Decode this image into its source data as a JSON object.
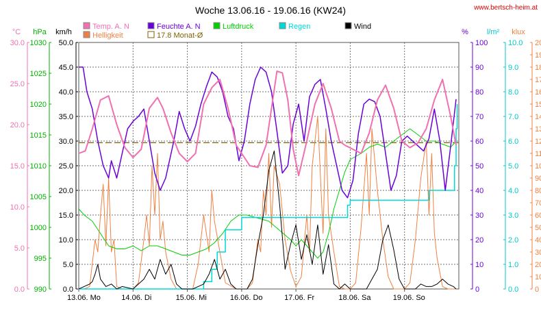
{
  "chart_data": {
    "type": "line",
    "title": "Woche 13.06.16 - 19.06.16 (KW24)",
    "source_text": "www.bertsch-heim.at",
    "x_labels": [
      "13.06.  Mo",
      "14.06.  Di",
      "15.06.  Mi",
      "16.06.  Do",
      "17.06.  Fr",
      "18.06.  Sa",
      "19.06.  So"
    ],
    "x_range": [
      0,
      7
    ],
    "grid": true,
    "legend": [
      {
        "label": "Temp. A. N",
        "color": "#f070b0"
      },
      {
        "label": "Helligkeit",
        "color": "#f08040"
      },
      {
        "label": "Feuchte A. N",
        "color": "#6a00d8"
      },
      {
        "label": "17.8 Monat-Ø",
        "color": "#806000"
      },
      {
        "label": "Luftdruck",
        "color": "#00d000"
      },
      {
        "label": "Regen",
        "color": "#00d8d8"
      },
      {
        "label": "Wind",
        "color": "#000000"
      }
    ],
    "axes": [
      {
        "unit": "°C",
        "color": "#f070b0",
        "min": 0,
        "max": 30,
        "ticks": [
          "0.0",
          "5.0",
          "10.0",
          "15.0",
          "20.0",
          "25.0",
          "30.0"
        ]
      },
      {
        "unit": "hPa",
        "color": "#00b000",
        "min": 990,
        "max": 1030,
        "ticks": [
          "990",
          "995",
          "1000",
          "1005",
          "1010",
          "1015",
          "1020",
          "1025",
          "1030"
        ]
      },
      {
        "unit": "km/h",
        "color": "#000000",
        "min": 0,
        "max": 50,
        "ticks": [
          "0.0",
          "5.0",
          "10.0",
          "15.0",
          "20.0",
          "25.0",
          "30.0",
          "35.0",
          "40.0",
          "45.0",
          "50.0"
        ]
      },
      {
        "unit": "%",
        "color": "#6a00d8",
        "min": 0,
        "max": 100,
        "ticks": [
          "0",
          "10",
          "20",
          "30",
          "40",
          "50",
          "60",
          "70",
          "80",
          "90",
          "100"
        ]
      },
      {
        "unit": "l/m²",
        "color": "#00c8c8",
        "min": 0,
        "max": 10,
        "ticks": [
          "0.0",
          "1.0",
          "2.0",
          "3.0",
          "4.0",
          "5.0",
          "6.0",
          "7.0",
          "8.0",
          "9.0",
          "10.0"
        ]
      },
      {
        "unit": "klux",
        "color": "#f08040",
        "min": 0,
        "max": 200,
        "ticks": [
          "0",
          "10",
          "20",
          "30",
          "40",
          "50",
          "60",
          "70",
          "80",
          "90",
          "100",
          "110",
          "120",
          "130",
          "140",
          "150",
          "160",
          "170",
          "180",
          "190",
          "200"
        ]
      }
    ],
    "series": [
      {
        "name": "Temp. A. N",
        "axis": 0,
        "color": "#f070b0",
        "width": 2,
        "x": [
          0,
          0.12,
          0.25,
          0.4,
          0.55,
          0.7,
          0.85,
          1.0,
          1.15,
          1.3,
          1.45,
          1.55,
          1.7,
          1.85,
          2.0,
          2.15,
          2.3,
          2.45,
          2.6,
          2.75,
          2.9,
          3.0,
          3.15,
          3.3,
          3.45,
          3.55,
          3.65,
          3.75,
          3.85,
          3.95,
          4.05,
          4.2,
          4.35,
          4.5,
          4.65,
          4.8,
          4.9,
          5.05,
          5.2,
          5.35,
          5.5,
          5.65,
          5.8,
          5.95,
          6.1,
          6.25,
          6.4,
          6.55,
          6.7,
          6.85,
          6.95
        ],
        "y": [
          16.5,
          16.8,
          19.5,
          23.0,
          23.5,
          20.0,
          17.2,
          16.0,
          17.0,
          22.0,
          23.3,
          22.0,
          19.0,
          16.5,
          15.5,
          16.5,
          22.5,
          24.5,
          25.5,
          22.0,
          17.5,
          16.5,
          15.0,
          14.8,
          17.5,
          22.0,
          26.5,
          26.3,
          23.0,
          17.0,
          13.8,
          18.0,
          22.5,
          25.0,
          22.0,
          18.0,
          17.5,
          17.0,
          16.5,
          19.0,
          23.0,
          24.8,
          22.0,
          18.0,
          17.2,
          17.8,
          19.5,
          23.0,
          25.5,
          21.0,
          17.5
        ]
      },
      {
        "name": "Feuchte A. N",
        "axis": 3,
        "color": "#6a00d8",
        "width": 1.5,
        "x": [
          0,
          0.08,
          0.15,
          0.25,
          0.35,
          0.45,
          0.55,
          0.6,
          0.7,
          0.8,
          0.9,
          1.0,
          1.1,
          1.2,
          1.3,
          1.4,
          1.5,
          1.6,
          1.75,
          1.85,
          1.95,
          2.05,
          2.15,
          2.25,
          2.35,
          2.45,
          2.55,
          2.65,
          2.75,
          2.85,
          2.95,
          3.05,
          3.15,
          3.25,
          3.35,
          3.45,
          3.55,
          3.65,
          3.75,
          3.85,
          3.95,
          4.05,
          4.15,
          4.25,
          4.35,
          4.45,
          4.55,
          4.65,
          4.75,
          4.85,
          4.95,
          5.05,
          5.15,
          5.25,
          5.35,
          5.45,
          5.55,
          5.65,
          5.75,
          5.85,
          5.95,
          6.05,
          6.15,
          6.25,
          6.35,
          6.45,
          6.55,
          6.65,
          6.75,
          6.85,
          6.95
        ],
        "y": [
          90,
          90,
          80,
          73,
          60,
          50,
          45,
          52,
          45,
          55,
          65,
          68,
          70,
          73,
          60,
          47,
          40,
          45,
          60,
          72,
          65,
          60,
          66,
          75,
          82,
          88,
          86,
          80,
          70,
          65,
          52,
          60,
          75,
          85,
          90,
          88,
          80,
          64,
          47,
          50,
          67,
          75,
          60,
          78,
          83,
          85,
          73,
          60,
          50,
          40,
          37,
          44,
          63,
          75,
          77,
          76,
          70,
          55,
          40,
          46,
          60,
          62,
          60,
          58,
          56,
          61,
          73,
          60,
          40,
          58,
          77
        ]
      },
      {
        "name": "Luftdruck",
        "axis": 1,
        "color": "#00d000",
        "width": 1,
        "x": [
          0,
          0.1,
          0.25,
          0.4,
          0.55,
          0.7,
          0.85,
          1.0,
          1.15,
          1.3,
          1.45,
          1.6,
          1.75,
          1.9,
          2.05,
          2.2,
          2.35,
          2.5,
          2.65,
          2.8,
          2.95,
          3.1,
          3.3,
          3.5,
          3.7,
          3.9,
          4.0,
          4.1,
          4.2,
          4.3,
          4.4,
          4.5,
          4.6,
          4.7,
          4.8,
          4.9,
          5.0,
          5.2,
          5.35,
          5.5,
          5.65,
          5.8,
          5.95,
          6.1,
          6.25,
          6.4,
          6.55,
          6.7,
          6.85,
          6.95
        ],
        "y": [
          1003,
          1002,
          1001,
          999,
          997,
          996.5,
          996.5,
          997,
          996.2,
          997,
          997,
          996.5,
          996,
          995.5,
          995.5,
          996,
          996.5,
          997.5,
          999,
          1001,
          1002,
          1002,
          1001.5,
          1001,
          999.5,
          998,
          997,
          998,
          997,
          996,
          995,
          996,
          999,
          1003,
          1006,
          1009,
          1011,
          1012,
          1013,
          1013.5,
          1013,
          1014,
          1015,
          1016,
          1015,
          1014,
          1014,
          1013.5,
          1013,
          1014
        ]
      },
      {
        "name": "Regen",
        "axis": 4,
        "color": "#00d8d8",
        "width": 1.5,
        "x": [
          0,
          2.2,
          2.3,
          2.45,
          2.55,
          2.7,
          3.0,
          3.4,
          3.6,
          4.0,
          4.4,
          4.8,
          4.85,
          4.95,
          5.0,
          6.0,
          6.2,
          6.45,
          6.9,
          6.92,
          6.95,
          6.97
        ],
        "y": [
          0,
          0,
          0.3,
          0.8,
          1.5,
          2.4,
          2.9,
          2.9,
          2.9,
          2.9,
          2.9,
          2.9,
          2.9,
          3.4,
          3.6,
          3.6,
          3.6,
          4.0,
          4.0,
          5.0,
          6.5,
          7.5
        ]
      },
      {
        "name": "Wind",
        "axis": 2,
        "color": "#000000",
        "width": 1,
        "x": [
          0,
          0.1,
          0.2,
          0.25,
          0.3,
          0.35,
          0.4,
          0.5,
          0.6,
          0.7,
          0.8,
          1.0,
          1.1,
          1.2,
          1.3,
          1.4,
          1.5,
          1.6,
          1.7,
          1.8,
          1.9,
          2.0,
          2.1,
          2.2,
          2.3,
          2.4,
          2.5,
          2.6,
          2.7,
          2.8,
          2.9,
          3.0,
          3.1,
          3.2,
          3.3,
          3.4,
          3.5,
          3.6,
          3.7,
          3.8,
          3.9,
          4.0,
          4.1,
          4.2,
          4.3,
          4.4,
          4.5,
          4.6,
          4.7,
          4.8,
          4.9,
          5.0,
          5.1,
          5.2,
          5.3,
          5.4,
          5.5,
          5.6,
          5.7,
          5.8,
          5.9,
          6.0,
          6.1,
          6.2,
          6.3,
          6.4,
          6.5,
          6.6,
          6.7,
          6.8,
          6.9,
          6.95
        ],
        "y": [
          0,
          0.5,
          1,
          1.5,
          3,
          5,
          2,
          0.5,
          1,
          0,
          0.5,
          0,
          1,
          2,
          4,
          2,
          6,
          3,
          5,
          1,
          0,
          0,
          0,
          0.5,
          1,
          3,
          6,
          2,
          4,
          1,
          0,
          0,
          0,
          2,
          9,
          15,
          24,
          28,
          17,
          4,
          9,
          13,
          6,
          11,
          5,
          13,
          3,
          9,
          1,
          0,
          1,
          0,
          0,
          0,
          0,
          2,
          4,
          10,
          13,
          8,
          2,
          0,
          0,
          0,
          1,
          0.5,
          0.5,
          1,
          2,
          1,
          0.5,
          0
        ]
      },
      {
        "name": "Helligkeit",
        "axis": 5,
        "color": "#f08040",
        "width": 1,
        "x": [
          0,
          0.1,
          0.2,
          0.3,
          0.35,
          0.4,
          0.45,
          0.5,
          0.55,
          0.6,
          0.65,
          0.7,
          0.8,
          0.9,
          1.0,
          1.1,
          1.2,
          1.25,
          1.3,
          1.35,
          1.4,
          1.45,
          1.5,
          1.55,
          1.6,
          1.7,
          1.8,
          2.0,
          2.1,
          2.2,
          2.3,
          2.4,
          2.45,
          2.5,
          2.6,
          2.7,
          2.9,
          3.1,
          3.2,
          3.3,
          3.35,
          3.4,
          3.45,
          3.5,
          3.55,
          3.6,
          3.7,
          3.8,
          3.9,
          4.0,
          4.1,
          4.2,
          4.25,
          4.3,
          4.4,
          4.5,
          4.55,
          4.6,
          4.7,
          4.8,
          4.9,
          5.0,
          5.1,
          5.2,
          5.3,
          5.35,
          5.4,
          5.5,
          5.6,
          5.7,
          5.8,
          5.9,
          6.0,
          6.1,
          6.2,
          6.3,
          6.4,
          6.45,
          6.5,
          6.55,
          6.6,
          6.7,
          6.8,
          6.9,
          6.95
        ],
        "y": [
          0,
          0,
          2,
          40,
          30,
          60,
          85,
          35,
          90,
          30,
          40,
          2,
          0,
          0,
          0,
          5,
          40,
          60,
          35,
          100,
          60,
          110,
          40,
          55,
          30,
          8,
          0,
          0,
          0,
          20,
          60,
          30,
          80,
          55,
          30,
          5,
          0,
          0,
          5,
          40,
          30,
          80,
          60,
          110,
          50,
          100,
          85,
          40,
          15,
          2,
          10,
          60,
          30,
          100,
          140,
          45,
          130,
          60,
          30,
          2,
          0,
          0,
          5,
          50,
          110,
          60,
          130,
          80,
          40,
          10,
          0,
          0,
          0,
          5,
          40,
          90,
          120,
          60,
          110,
          45,
          25,
          2,
          0,
          0,
          0
        ]
      }
    ],
    "reference_lines": [
      {
        "name": "17.8 Monat-Ø",
        "axis": 0,
        "value": 17.8,
        "color": "#806000"
      }
    ]
  }
}
